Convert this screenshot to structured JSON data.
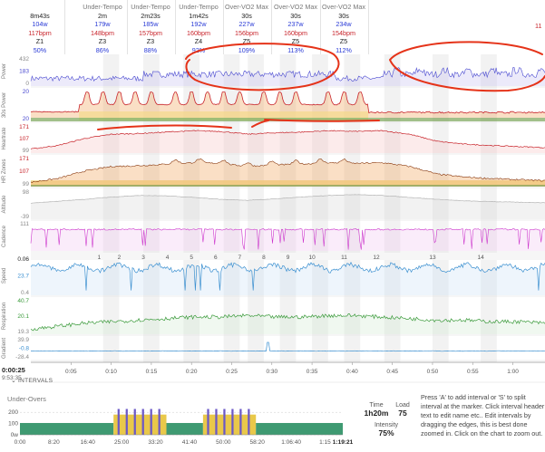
{
  "intervals": [
    {
      "label": "",
      "duration": "8m43s",
      "power": "104w",
      "hr": "117bpm",
      "zone": "Z1",
      "pct": "50%"
    },
    {
      "label": "Under-Tempo",
      "duration": "2m",
      "power": "179w",
      "hr": "148bpm",
      "zone": "Z3",
      "pct": "86%"
    },
    {
      "label": "Under-Tempo",
      "duration": "2m23s",
      "power": "185w",
      "hr": "157bpm",
      "zone": "Z3",
      "pct": "88%"
    },
    {
      "label": "Under-Tempo",
      "duration": "1m42s",
      "power": "192w",
      "hr": "160bpm",
      "zone": "Z4",
      "pct": "92%"
    },
    {
      "label": "Over-VO2 Max",
      "duration": "30s",
      "power": "227w",
      "hr": "156bpm",
      "zone": "Z5",
      "pct": "109%"
    },
    {
      "label": "Over-VO2 Max",
      "duration": "30s",
      "power": "237w",
      "hr": "160bpm",
      "zone": "Z5",
      "pct": "113%"
    },
    {
      "label": "Over-VO2 Max",
      "duration": "30s",
      "power": "234w",
      "hr": "154bpm",
      "zone": "Z5",
      "pct": "112%"
    }
  ],
  "header_right_fragment": "11",
  "lanes": [
    {
      "name": "Power",
      "ticks": [
        "432",
        "183",
        "0"
      ]
    },
    {
      "name": "30s Power",
      "ticks": [
        "20",
        "20"
      ]
    },
    {
      "name": "Heartrate",
      "ticks": [
        "171",
        "107",
        "99"
      ]
    },
    {
      "name": "HR Zones",
      "ticks": [
        "171",
        "107",
        "99"
      ]
    },
    {
      "name": "Altitude",
      "ticks": [
        "98",
        "-39"
      ]
    },
    {
      "name": "Cadence",
      "ticks": [
        "111"
      ]
    },
    {
      "name": "Speed",
      "ticks": [
        "0.06",
        "23.7",
        "0.4"
      ]
    },
    {
      "name": "Respiration",
      "ticks": [
        "40.7",
        "20.1",
        "19.3"
      ]
    },
    {
      "name": "Gradient",
      "ticks": [
        "39.9",
        "-0.8",
        "-28.4"
      ]
    }
  ],
  "interval_markers": [
    "1",
    "2",
    "3",
    "4",
    "5",
    "6",
    "7",
    "8",
    "9",
    "10",
    "11",
    "12",
    "13",
    "14"
  ],
  "chart_data": {
    "type": "line",
    "x_axis_ticks": [
      "0:05",
      "0:10",
      "0:15",
      "0:20",
      "0:25",
      "0:30",
      "0:35",
      "0:40",
      "0:45",
      "0:50",
      "0:55",
      "1:00"
    ],
    "x_range_minutes": [
      0,
      64
    ],
    "series": [
      {
        "name": "Power",
        "ylim": [
          0,
          432
        ],
        "base": 110,
        "work_intervals": [
          [
            14,
            38
          ],
          [
            44,
            64
          ]
        ]
      },
      {
        "name": "30s Power",
        "ylim": [
          0,
          300
        ],
        "peaks": [
          7,
          9,
          11,
          13,
          15,
          18,
          20,
          22,
          24,
          26,
          29,
          31,
          33,
          37,
          39,
          41
        ]
      },
      {
        "name": "Heartrate",
        "ylim": [
          99,
          171
        ],
        "values": [
          108,
          118,
          138,
          150,
          152,
          156,
          160,
          158,
          150,
          154,
          156,
          160,
          158,
          160,
          150,
          130,
          122,
          118,
          115,
          112
        ]
      },
      {
        "name": "HR Zones",
        "ylim": [
          99,
          171
        ],
        "values": [
          108,
          118,
          138,
          150,
          152,
          156,
          160,
          158,
          150,
          154,
          156,
          160,
          158,
          160,
          150,
          130,
          122,
          118,
          115,
          112
        ]
      },
      {
        "name": "Altitude",
        "ylim": [
          -39,
          98
        ],
        "values": [
          40,
          50,
          60,
          72,
          80,
          78,
          70,
          60,
          55,
          62,
          72,
          80,
          85,
          80,
          70,
          60,
          52,
          48,
          45,
          42
        ]
      },
      {
        "name": "Cadence",
        "ylim": [
          0,
          111
        ],
        "base": 90
      },
      {
        "name": "Speed",
        "ylim": [
          0.4,
          23.7
        ],
        "base": 18
      },
      {
        "name": "Respiration",
        "ylim": [
          19.3,
          40.7
        ],
        "values": [
          22,
          24,
          26,
          27,
          28,
          29,
          30,
          30,
          31,
          30,
          30,
          31,
          31,
          30,
          29,
          28,
          28,
          27,
          27,
          26
        ]
      },
      {
        "name": "Gradient",
        "ylim": [
          -28.4,
          39.9
        ],
        "base": -0.8
      }
    ]
  },
  "time_start": "0:00:25",
  "time_clock": "9:53:35",
  "intervals_label": "INTERVALS",
  "bottom": {
    "title": "Under-Overs",
    "chart_data": {
      "type": "area",
      "x_ticks": [
        "0:00",
        "8:20",
        "16:40",
        "25:00",
        "33:20",
        "41:40",
        "50:00",
        "58:20",
        "1:06:40",
        "1:15",
        "1:19:21"
      ],
      "y_ticks": [
        "200",
        "100",
        "0w"
      ],
      "ylim": [
        0,
        250
      ],
      "blocks": [
        {
          "start": 0,
          "end": 23,
          "w": 105,
          "color": "#3f9a72"
        },
        {
          "start": 23,
          "end": 36,
          "w": 180,
          "color": "#e9c84a"
        },
        {
          "start": 36,
          "end": 45,
          "w": 105,
          "color": "#3f9a72"
        },
        {
          "start": 45,
          "end": 58,
          "w": 180,
          "color": "#e9c84a"
        },
        {
          "start": 58,
          "end": 79.35,
          "w": 105,
          "color": "#3f9a72"
        }
      ],
      "over_bursts": {
        "color": "#6b58c7",
        "w": 230,
        "every": 2,
        "width": 0.5
      }
    },
    "stats": {
      "time_label": "Time",
      "time_value": "1h20m",
      "load_label": "Load",
      "load_value": "75",
      "intensity_label": "Intensity",
      "intensity_value": "75%"
    },
    "help_text": "Press 'A' to add interval or 'S' to split interval at the marker. Click interval header text to edit name etc.. Edit intervals by dragging the edges, this is best done zoomed in. Click on the chart to zoom out."
  },
  "colors": {
    "power": "#4a4ad0",
    "hr": "#c8242b",
    "cadence": "#cc33cc",
    "speed": "#3a8fd0",
    "resp": "#3a9a3a",
    "zone_orange": "#f0a35a",
    "zone_green": "#5aa65a",
    "zone_yellow": "#f3d98a",
    "annotation": "#e53319"
  }
}
